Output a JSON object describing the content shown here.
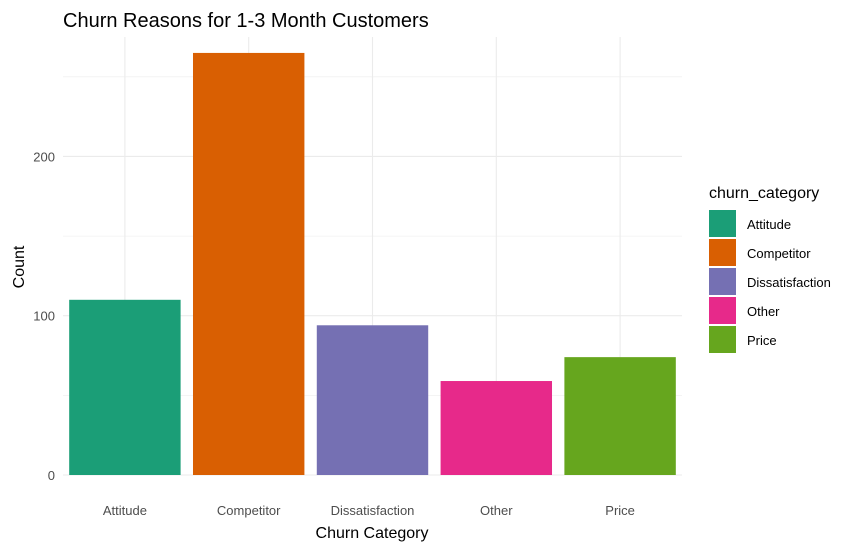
{
  "chart_data": {
    "type": "bar",
    "title": "Churn Reasons for 1-3 Month Customers",
    "xlabel": "Churn Category",
    "ylabel": "Count",
    "categories": [
      "Attitude",
      "Competitor",
      "Dissatisfaction",
      "Other",
      "Price"
    ],
    "values": [
      110,
      265,
      94,
      59,
      74
    ],
    "colors": [
      "#1b9e77",
      "#d95f02",
      "#7570b3",
      "#e7298a",
      "#66a61e"
    ],
    "ylim": [
      0,
      275
    ],
    "yticks": [
      0,
      100,
      200
    ],
    "y_minor_ticks": [
      50,
      150,
      250
    ],
    "grid": true,
    "legend": {
      "title": "churn_category",
      "position": "right",
      "entries": [
        "Attitude",
        "Competitor",
        "Dissatisfaction",
        "Other",
        "Price"
      ]
    }
  }
}
